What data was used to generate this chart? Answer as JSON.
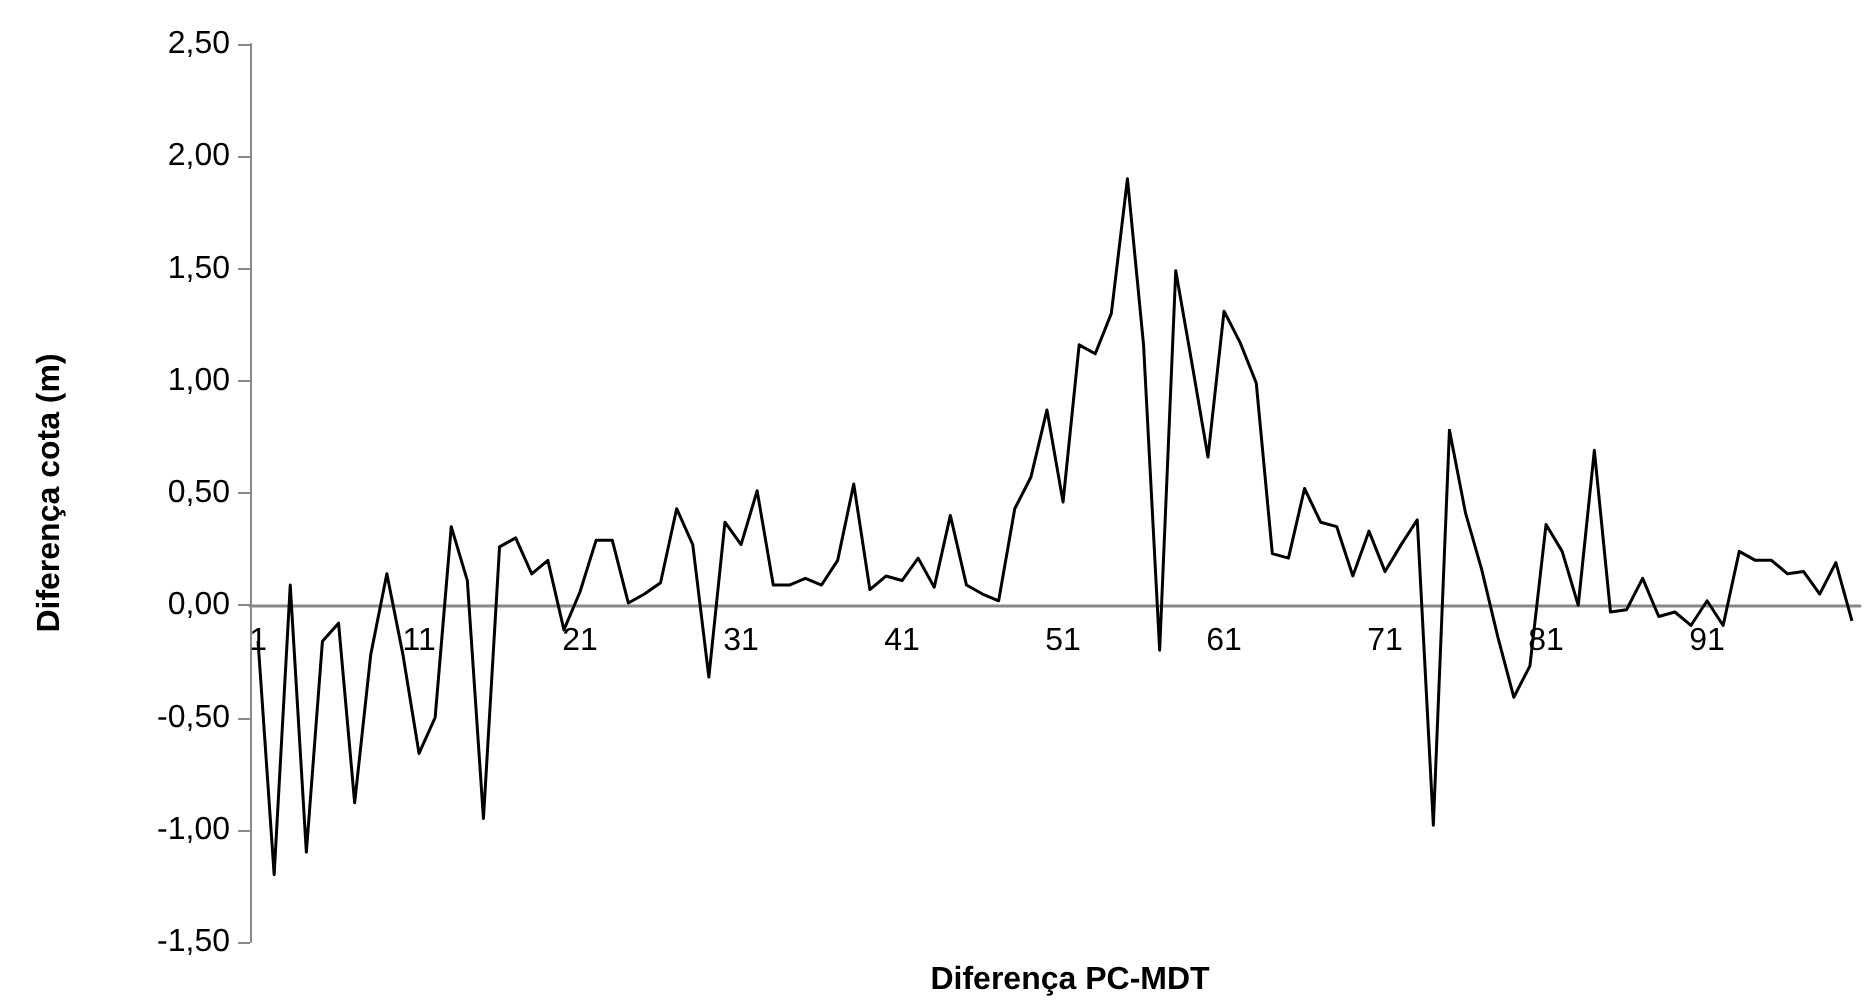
{
  "chart_data": {
    "type": "line",
    "xlabel": "Diferença PC-MDT",
    "ylabel": "Diferença cota (m)",
    "categories": [
      "1",
      null,
      null,
      null,
      null,
      null,
      null,
      null,
      null,
      null,
      "11",
      null,
      null,
      null,
      null,
      null,
      null,
      null,
      null,
      null,
      "21",
      null,
      null,
      null,
      null,
      null,
      null,
      null,
      null,
      null,
      "31",
      null,
      null,
      null,
      null,
      null,
      null,
      null,
      null,
      null,
      "41",
      null,
      null,
      null,
      null,
      null,
      null,
      null,
      null,
      null,
      "51",
      null,
      null,
      null,
      null,
      null,
      null,
      null,
      null,
      null,
      "61",
      null,
      null,
      null,
      null,
      null,
      null,
      null,
      null,
      null,
      "71",
      null,
      null,
      null,
      null,
      null,
      null,
      null,
      null,
      null,
      "81",
      null,
      null,
      null,
      null,
      null,
      null,
      null,
      null,
      null,
      "91",
      null,
      null,
      null,
      null,
      null,
      null,
      null,
      null,
      null
    ],
    "series": [
      {
        "color": "#000000",
        "values": [
          -0.16,
          -1.2,
          0.09,
          -1.1,
          -0.16,
          -0.08,
          -0.88,
          -0.22,
          0.14,
          -0.22,
          -0.66,
          -0.5,
          0.35,
          0.11,
          -0.95,
          0.26,
          0.3,
          0.14,
          0.2,
          -0.11,
          0.06,
          0.29,
          0.29,
          0.01,
          0.05,
          0.1,
          0.43,
          0.27,
          -0.32,
          0.37,
          0.27,
          0.51,
          0.09,
          0.09,
          0.12,
          0.09,
          0.2,
          0.54,
          0.07,
          0.13,
          0.11,
          0.21,
          0.08,
          0.4,
          0.09,
          0.05,
          0.02,
          0.43,
          0.57,
          0.87,
          0.46,
          1.16,
          1.12,
          1.3,
          1.9,
          1.16,
          -0.2,
          1.49,
          1.08,
          0.66,
          1.31,
          1.17,
          0.99,
          0.23,
          0.21,
          0.52,
          0.37,
          0.35,
          0.13,
          0.33,
          0.15,
          0.27,
          0.38,
          -0.98,
          0.78,
          0.41,
          0.16,
          -0.14,
          -0.41,
          -0.27,
          0.36,
          0.24,
          0.0,
          0.69,
          -0.03,
          -0.02,
          0.12,
          -0.05,
          -0.03,
          -0.09,
          0.02,
          -0.09,
          0.24,
          0.2,
          0.2,
          0.14,
          0.15,
          0.05,
          0.19,
          -0.07
        ]
      }
    ],
    "ylim": [
      -1.5,
      2.5
    ],
    "yticks": [
      {
        "value": -1.5,
        "label": "-1,50"
      },
      {
        "value": -1,
        "label": "-1,00"
      },
      {
        "value": -0.5,
        "label": "-0,50"
      },
      {
        "value": 0,
        "label": "0,00"
      },
      {
        "value": 0.5,
        "label": "0,50"
      },
      {
        "value": 1,
        "label": "1,00"
      },
      {
        "value": 1.5,
        "label": "1,50"
      },
      {
        "value": 2,
        "label": "2,00"
      },
      {
        "value": 2.5,
        "label": "2,50"
      }
    ],
    "grid": false,
    "marker": "none",
    "line_style": "solid"
  }
}
